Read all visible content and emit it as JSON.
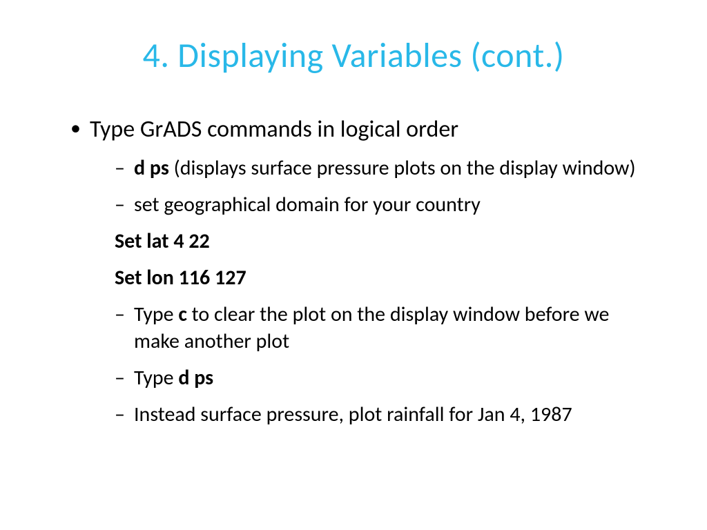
{
  "colors": {
    "title": "#29b8e8",
    "body_text": "#000000",
    "background": "#ffffff"
  },
  "typography": {
    "title_fontsize": 50,
    "l1_fontsize": 34,
    "l2_fontsize": 30,
    "font_family": "Calibri"
  },
  "title": "4. Displaying Variables (cont.)",
  "content": {
    "l1_text": "Type GrADS commands in logical order",
    "items": {
      "i0_bold": "d ps",
      "i0_rest": " (displays surface pressure plots on the display window)",
      "i1": "set geographical domain for your country",
      "i2_bold": "Set lat 4 22",
      "i3_bold": "Set lon 116 127",
      "i4_pre": " Type ",
      "i4_bold": "c",
      "i4_rest": " to clear the plot on the display window before we make another plot",
      "i5_pre": "Type ",
      "i5_bold": "d ps",
      "i6": "Instead surface pressure, plot rainfall for Jan 4, 1987"
    }
  }
}
